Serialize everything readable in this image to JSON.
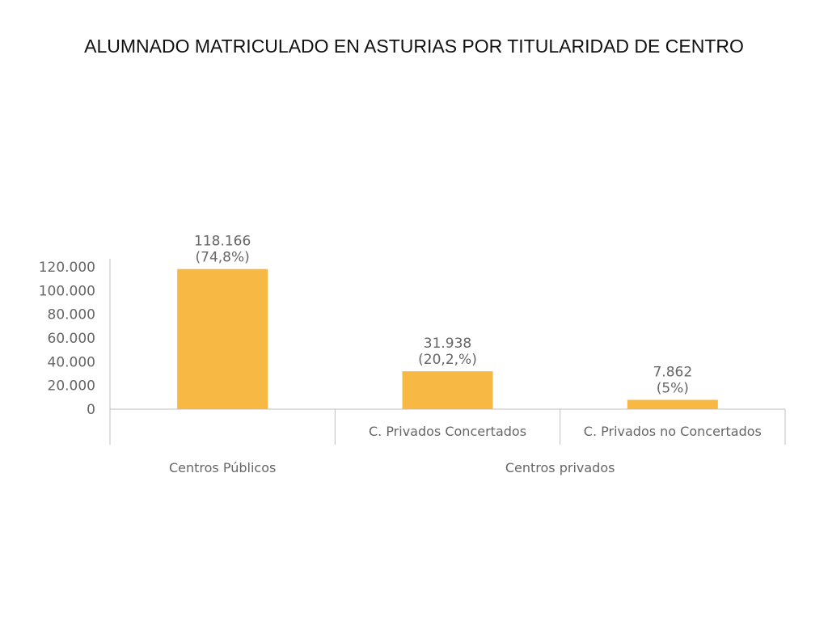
{
  "title": "ALUMNADO MATRICULADO EN ASTURIAS POR TITULARIDAD DE CENTRO",
  "chart_data": {
    "type": "bar",
    "categories": [
      "",
      "C. Privados Concertados",
      "C. Privados no Concertados"
    ],
    "groups": [
      {
        "label": "Centros Públicos",
        "categories": [
          ""
        ]
      },
      {
        "label": "Centros privados",
        "categories": [
          "C. Privados Concertados",
          "C. Privados no Concertados"
        ]
      }
    ],
    "values": [
      118166,
      31938,
      7862
    ],
    "value_labels": [
      "118.166",
      "31.938",
      "7.862"
    ],
    "percent_labels": [
      "(74,8%)",
      "(20,2,%)",
      "(5%)"
    ],
    "yticks": [
      0,
      20000,
      40000,
      60000,
      80000,
      100000,
      120000
    ],
    "ytick_labels": [
      "0",
      "20.000",
      "40.000",
      "60.000",
      "80.000",
      "100.000",
      "120.000"
    ],
    "ylim": [
      0,
      120000
    ],
    "xlabel": "",
    "ylabel": "",
    "grid": false,
    "bar_color": "#F7B944",
    "axis_color": "#bfbfbf",
    "text_color": "#666666"
  }
}
